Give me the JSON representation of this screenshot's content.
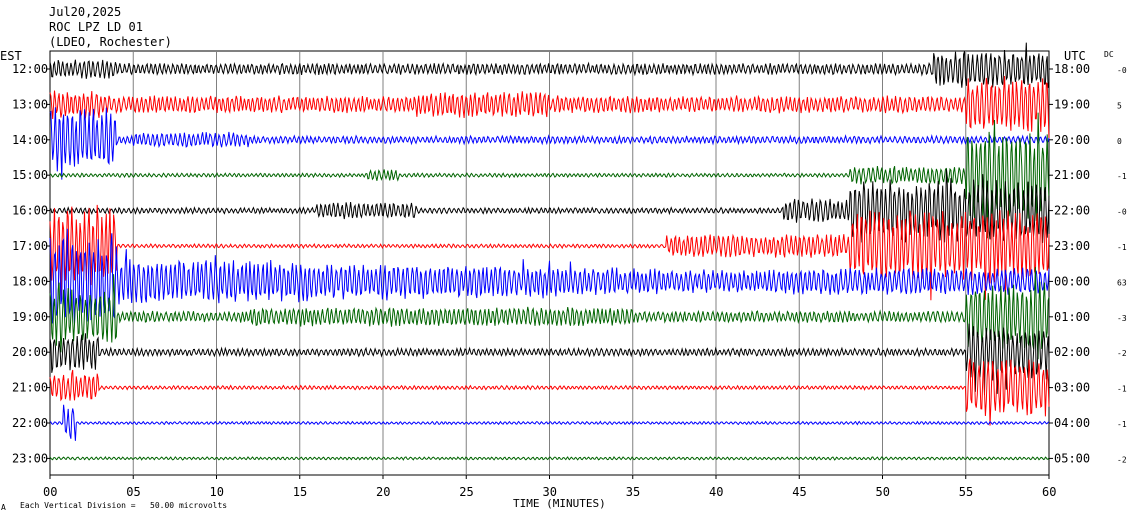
{
  "header": {
    "date": "Jul20,2025",
    "station": "ROC LPZ LD 01",
    "network": "(LDEO, Rochester)"
  },
  "left_axis_title": "EST",
  "right_axis_title": "UTC",
  "dc_title": "DC",
  "footer_note": "Each Vertical Division =   50.00 microvolts",
  "footer_mark": "A",
  "chart_data": {
    "type": "line",
    "title": "Jul20,2025",
    "xlabel": "TIME (MINUTES)",
    "xlim": [
      0,
      60
    ],
    "xticks": [
      "00",
      "05",
      "10",
      "15",
      "20",
      "25",
      "30",
      "35",
      "40",
      "45",
      "50",
      "55",
      "60"
    ],
    "series_colors": {
      "black": "#000000",
      "red": "#ff0000",
      "blue": "#0000ff",
      "green": "#006400"
    },
    "rows": [
      {
        "est": "12:00",
        "utc": "18:00",
        "dc": "-0",
        "color": "black"
      },
      {
        "est": "13:00",
        "utc": "19:00",
        "dc": "5",
        "color": "red"
      },
      {
        "est": "14:00",
        "utc": "20:00",
        "dc": "0",
        "color": "blue"
      },
      {
        "est": "15:00",
        "utc": "21:00",
        "dc": "-1",
        "color": "green"
      },
      {
        "est": "16:00",
        "utc": "22:00",
        "dc": "-0",
        "color": "black"
      },
      {
        "est": "17:00",
        "utc": "23:00",
        "dc": "-1",
        "color": "red"
      },
      {
        "est": "18:00",
        "utc": "00:00",
        "dc": "63",
        "color": "blue"
      },
      {
        "est": "19:00",
        "utc": "01:00",
        "dc": "-3",
        "color": "green"
      },
      {
        "est": "20:00",
        "utc": "02:00",
        "dc": "-2",
        "color": "black"
      },
      {
        "est": "21:00",
        "utc": "03:00",
        "dc": "-1",
        "color": "red"
      },
      {
        "est": "22:00",
        "utc": "04:00",
        "dc": "-1",
        "color": "blue"
      },
      {
        "est": "23:00",
        "utc": "05:00",
        "dc": "-2",
        "color": "green"
      }
    ]
  }
}
